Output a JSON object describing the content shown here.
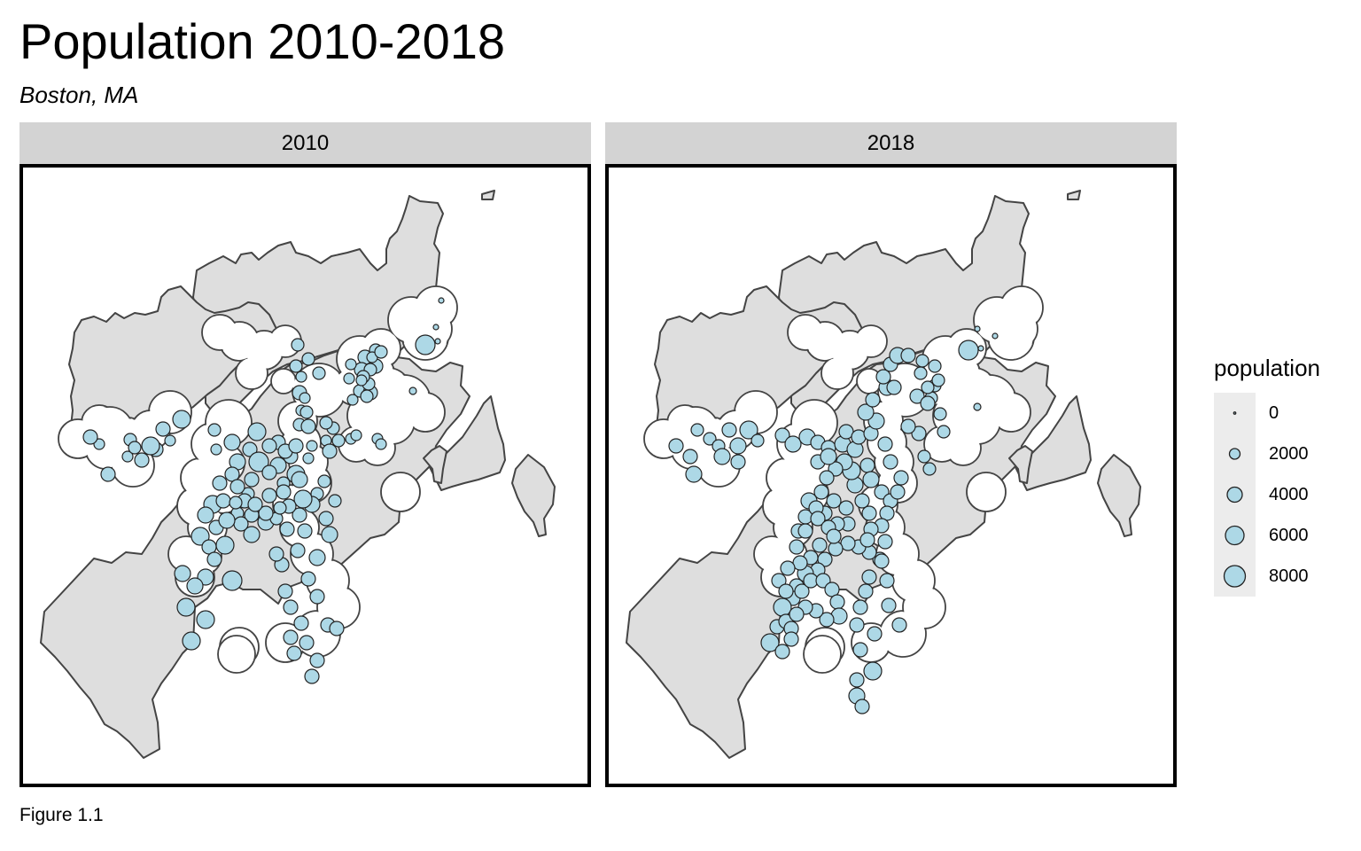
{
  "title": "Population 2010-2018",
  "subtitle": "Boston, MA",
  "caption": "Figure 1.1",
  "colors": {
    "land": "#dedede",
    "outline": "#444444",
    "point_fill": "#add8e6",
    "strip": "#d3d3d3"
  },
  "legend": {
    "title": "population",
    "entries": [
      {
        "label": "0",
        "value": 0
      },
      {
        "label": "2000",
        "value": 2000
      },
      {
        "label": "4000",
        "value": 4000
      },
      {
        "label": "6000",
        "value": 6000
      },
      {
        "label": "8000",
        "value": 8000
      }
    ]
  },
  "panels": [
    {
      "label": "2010"
    },
    {
      "label": "2018"
    }
  ]
}
